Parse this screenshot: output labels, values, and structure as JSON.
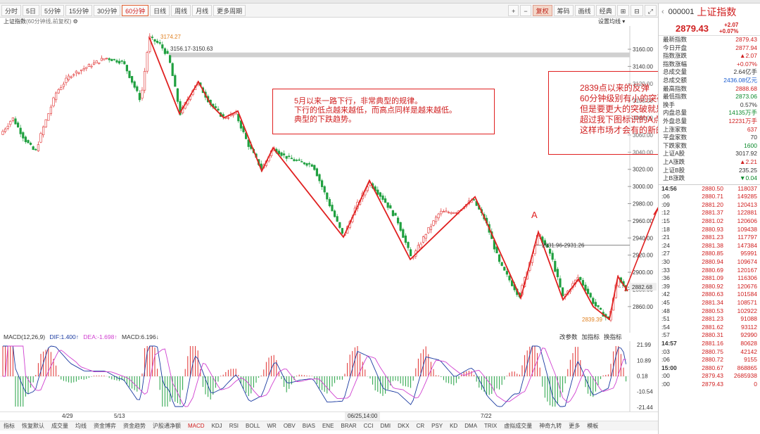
{
  "toolbar": {
    "tabs": [
      "分时",
      "5日",
      "5分钟",
      "15分钟",
      "30分钟",
      "60分钟",
      "日线",
      "周线",
      "月线",
      "更多周期"
    ],
    "active_tab": "60分钟",
    "right_buttons": [
      "+",
      "−",
      "复权",
      "筹码",
      "画线",
      "经典",
      "⊞",
      "⊟",
      "⤢"
    ]
  },
  "chart": {
    "symbol_label": "上证指数",
    "period_label": "(60分钟线,前复权)",
    "settings_label": "设置均线",
    "high_label": "3174.27",
    "range_label_top": "3156.17-3150.63",
    "range_label_a": "2931.96-2931.26",
    "low_label": "2839.39",
    "point_a_label": "A",
    "last_price_label": "2882.68",
    "price_axis": [
      "3160.00",
      "3140.00",
      "3120.00",
      "3100.00",
      "3080.00",
      "3060.00",
      "3040.00",
      "3020.00",
      "3000.00",
      "2980.00",
      "2960.00",
      "2940.00",
      "2920.00",
      "2900.00",
      "2880.00",
      "2860.00"
    ]
  },
  "annotations": {
    "box1": [
      "5月以来一路下行，非常典型的规律。",
      "下行的低点越来越低，而高点同样是越来越低。",
      "典型的下跌趋势。"
    ],
    "box2": [
      "2839点以来的反弹",
      "60分钟级别有小的突破",
      "但是要更大的突破就是要",
      "超过我下图标识的A点",
      "这样市场才会有的新的预期"
    ]
  },
  "macd": {
    "label": "MACD(12,26,9)",
    "dif_label": "DIF:1.400",
    "dea_label": "DEA:-1.698",
    "macd_label": "MACD:6.196",
    "right_buttons": [
      "改参数",
      "加指标",
      "换指标"
    ],
    "axis": [
      "21.99",
      "10.89",
      "0.18",
      "-10.54",
      "-21.44"
    ],
    "colors": {
      "dif": "#1a3aa0",
      "dea": "#d040d0",
      "up": "#e03030",
      "down": "#20a040"
    }
  },
  "date_axis": [
    "4/29",
    "5/13",
    "06/25,14:00",
    "7/22"
  ],
  "bottom_tabs": [
    "指标",
    "恢复默认",
    "成交量",
    "均线",
    "资金博弈",
    "资金趋势",
    "沪股通净额",
    "MACD",
    "KDJ",
    "RSI",
    "BOLL",
    "WR",
    "OBV",
    "BIAS",
    "ENE",
    "BRAR",
    "CCI",
    "DMI",
    "DKX",
    "CR",
    "PSY",
    "KD",
    "DMA",
    "TRIX",
    "虚拟成交量",
    "神奇九转",
    "更多",
    "模板"
  ],
  "active_bottom": "MACD",
  "panel": {
    "code": "000001",
    "name": "上证指数",
    "price": "2879.43",
    "change": "+2.07",
    "change_pct": "+0.07%",
    "stats": [
      {
        "k": "最新指数",
        "v": "2879.43",
        "c": ""
      },
      {
        "k": "今日开盘",
        "v": "2877.94",
        "c": ""
      },
      {
        "k": "指数涨跌",
        "v": "▲2.07",
        "c": ""
      },
      {
        "k": "指数涨幅",
        "v": "+0.07%",
        "c": ""
      },
      {
        "k": "总成交量",
        "v": "2.64亿手",
        "c": "black"
      },
      {
        "k": "总成交额",
        "v": "2436.08亿元",
        "c": "blue"
      },
      {
        "k": "最高指数",
        "v": "2888.68",
        "c": ""
      },
      {
        "k": "最低指数",
        "v": "2873.06",
        "c": "green"
      },
      {
        "k": "换手",
        "v": "0.57%",
        "c": "black"
      },
      {
        "k": "内盘总量",
        "v": "14135万手",
        "c": "green"
      },
      {
        "k": "外盘总量",
        "v": "12231万手",
        "c": ""
      },
      {
        "k": "上涨家数",
        "v": "637",
        "c": ""
      },
      {
        "k": "平盘家数",
        "v": "70",
        "c": "black"
      },
      {
        "k": "下跌家数",
        "v": "1600",
        "c": "green"
      },
      {
        "k": "上证A股",
        "v": "3017.92",
        "c": "black"
      },
      {
        "k": "上A涨跌",
        "v": "▲2.21",
        "c": ""
      },
      {
        "k": "上证B股",
        "v": "235.25",
        "c": "black"
      },
      {
        "k": "上B涨跌",
        "v": "▼0.04",
        "c": "green"
      }
    ],
    "ticks": [
      {
        "t": "14:56",
        "p": "2880.50",
        "v": "118037",
        "b": true
      },
      {
        "t": ":06",
        "p": "2880.71",
        "v": "149285",
        "b": false
      },
      {
        "t": ":09",
        "p": "2881.20",
        "v": "120413",
        "b": false
      },
      {
        "t": ":12",
        "p": "2881.37",
        "v": "122881",
        "b": false
      },
      {
        "t": ":15",
        "p": "2881.02",
        "v": "120606",
        "b": false
      },
      {
        "t": ":18",
        "p": "2880.93",
        "v": "109438",
        "b": false
      },
      {
        "t": ":21",
        "p": "2881.23",
        "v": "117797",
        "b": false
      },
      {
        "t": ":24",
        "p": "2881.38",
        "v": "147384",
        "b": false
      },
      {
        "t": ":27",
        "p": "2880.85",
        "v": "95991",
        "b": false
      },
      {
        "t": ":30",
        "p": "2880.94",
        "v": "109674",
        "b": false
      },
      {
        "t": ":33",
        "p": "2880.69",
        "v": "120167",
        "b": false
      },
      {
        "t": ":36",
        "p": "2881.09",
        "v": "116306",
        "b": false
      },
      {
        "t": ":39",
        "p": "2880.92",
        "v": "120676",
        "b": false
      },
      {
        "t": ":42",
        "p": "2880.63",
        "v": "101584",
        "b": false
      },
      {
        "t": ":45",
        "p": "2881.34",
        "v": "108571",
        "b": false
      },
      {
        "t": ":48",
        "p": "2880.53",
        "v": "102922",
        "b": false
      },
      {
        "t": ":51",
        "p": "2881.23",
        "v": "91088",
        "b": false
      },
      {
        "t": ":54",
        "p": "2881.62",
        "v": "93112",
        "b": false
      },
      {
        "t": ":57",
        "p": "2880.31",
        "v": "92990",
        "b": false
      },
      {
        "t": "14:57",
        "p": "2881.16",
        "v": "80628",
        "b": true
      },
      {
        "t": ":03",
        "p": "2880.75",
        "v": "42142",
        "b": false
      },
      {
        "t": ":06",
        "p": "2880.72",
        "v": "9155",
        "b": false
      },
      {
        "t": "15:00",
        "p": "2880.67",
        "v": "868865",
        "b": true
      },
      {
        "t": ":00",
        "p": "2879.43",
        "v": "2685938",
        "b": false
      },
      {
        "t": ":00",
        "p": "2879.43",
        "v": "0",
        "b": false
      }
    ]
  }
}
